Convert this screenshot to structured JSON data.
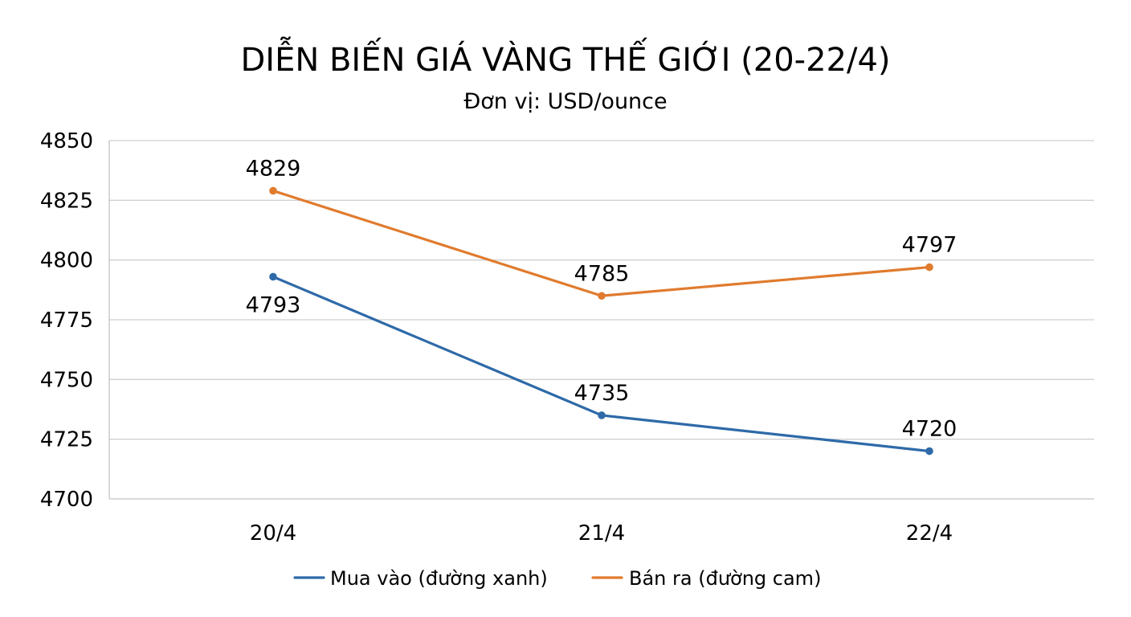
{
  "chart_data": {
    "type": "line",
    "title": "DIỄN BIẾN GIÁ VÀNG THẾ GIỚI (20-22/4)",
    "subtitle": "Đơn vị: USD/ounce",
    "xlabel": "",
    "ylabel": "",
    "categories": [
      "20/4",
      "21/4",
      "22/4"
    ],
    "ylim": [
      4700,
      4850
    ],
    "yticks": [
      4700,
      4725,
      4750,
      4775,
      4800,
      4825,
      4850
    ],
    "grid": true,
    "legend_position": "bottom",
    "series": [
      {
        "name": "Mua vào (đường xanh)",
        "color": "#2e6aa8",
        "values": [
          4793,
          4735,
          4720
        ],
        "labels": [
          "4793",
          "4735",
          "4720"
        ],
        "label_positions": [
          "below",
          "above",
          "above"
        ]
      },
      {
        "name": "Bán ra (đường cam)",
        "color": "#e07b2e",
        "values": [
          4829,
          4785,
          4797
        ],
        "labels": [
          "4829",
          "4785",
          "4797"
        ],
        "label_positions": [
          "above",
          "above",
          "above"
        ]
      }
    ]
  }
}
